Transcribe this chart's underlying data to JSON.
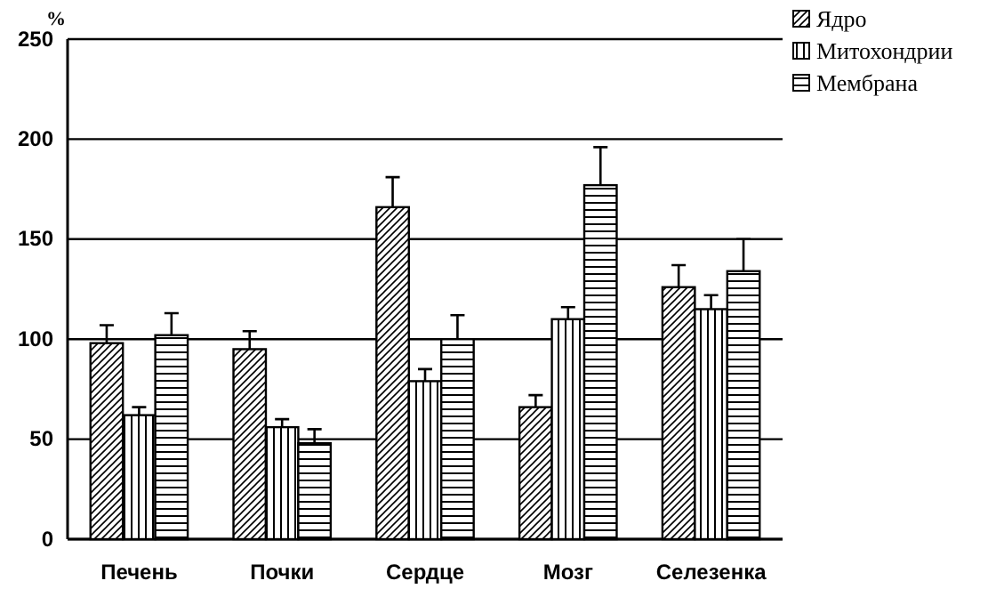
{
  "chart_data": {
    "type": "bar",
    "ylabel": "%",
    "categories": [
      "Печень",
      "Почки",
      "Сердце",
      "Мозг",
      "Селезенка"
    ],
    "series": [
      {
        "name": "Ядро",
        "color": "#000000",
        "values": [
          98,
          95,
          166,
          66,
          126
        ],
        "errors": [
          [
            98,
            107
          ],
          [
            95,
            104
          ],
          [
            166,
            181
          ],
          [
            66,
            72
          ],
          [
            126,
            137
          ]
        ]
      },
      {
        "name": "Митохондрии",
        "color": "#000000",
        "values": [
          62,
          56,
          79,
          110,
          115
        ],
        "errors": [
          [
            62,
            66
          ],
          [
            56,
            60
          ],
          [
            79,
            85
          ],
          [
            110,
            116
          ],
          [
            115,
            122
          ]
        ]
      },
      {
        "name": "Мембрана",
        "color": "#000000",
        "values": [
          102,
          48,
          100,
          177,
          134
        ],
        "errors": [
          [
            102,
            113
          ],
          [
            48,
            55
          ],
          [
            100,
            112
          ],
          [
            177,
            196
          ],
          [
            134,
            150
          ]
        ]
      }
    ],
    "ylim": [
      0,
      250
    ],
    "yticks": [
      0,
      50,
      100,
      150,
      200,
      250
    ],
    "grid": "y",
    "legend": "top right"
  }
}
